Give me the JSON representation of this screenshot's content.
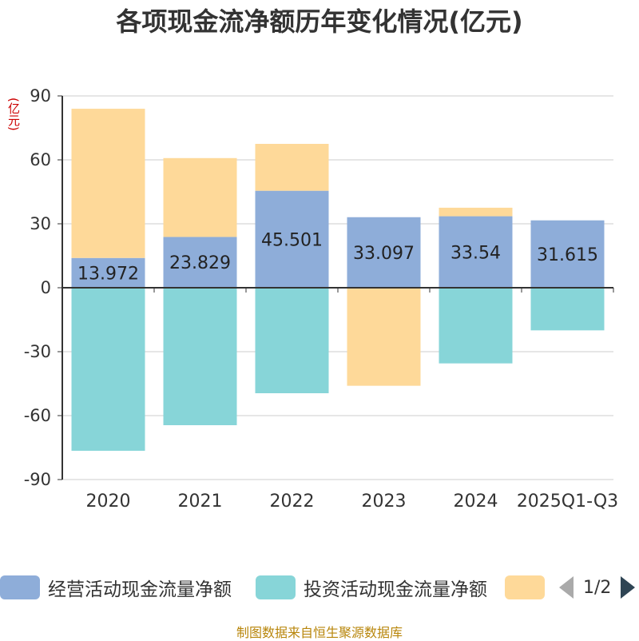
{
  "title": "各项现金流净额历年变化情况(亿元)",
  "unit_label": "(亿元)",
  "source": "制图数据来自恒生聚源数据库",
  "pager": {
    "text": "1/2"
  },
  "colors": {
    "operating": "#8eadd9",
    "investing": "#87d5d8",
    "financing": "#fed999",
    "grid": "#cccccc",
    "axis": "#333333"
  },
  "chart_data": {
    "type": "bar",
    "stacked": true,
    "categories": [
      "2020",
      "2021",
      "2022",
      "2023",
      "2024",
      "2025Q1-Q3"
    ],
    "ylim": [
      -90,
      90
    ],
    "yticks": [
      90,
      60,
      30,
      0,
      -30,
      -60,
      -90
    ],
    "grid": true,
    "legend_position": "bottom",
    "series": [
      {
        "name": "经营活动现金流量净额",
        "values": [
          13.972,
          23.829,
          45.501,
          33.097,
          33.54,
          31.615
        ],
        "labels": [
          "13.972",
          "23.829",
          "45.501",
          "33.097",
          "33.54",
          "31.615"
        ]
      },
      {
        "name": "投资活动现金流量净额",
        "values": [
          -76.5,
          -64.5,
          -49.5,
          0,
          -35.5,
          -20
        ]
      },
      {
        "name": "",
        "values": [
          70,
          37,
          22,
          -46,
          4,
          0
        ]
      }
    ]
  }
}
